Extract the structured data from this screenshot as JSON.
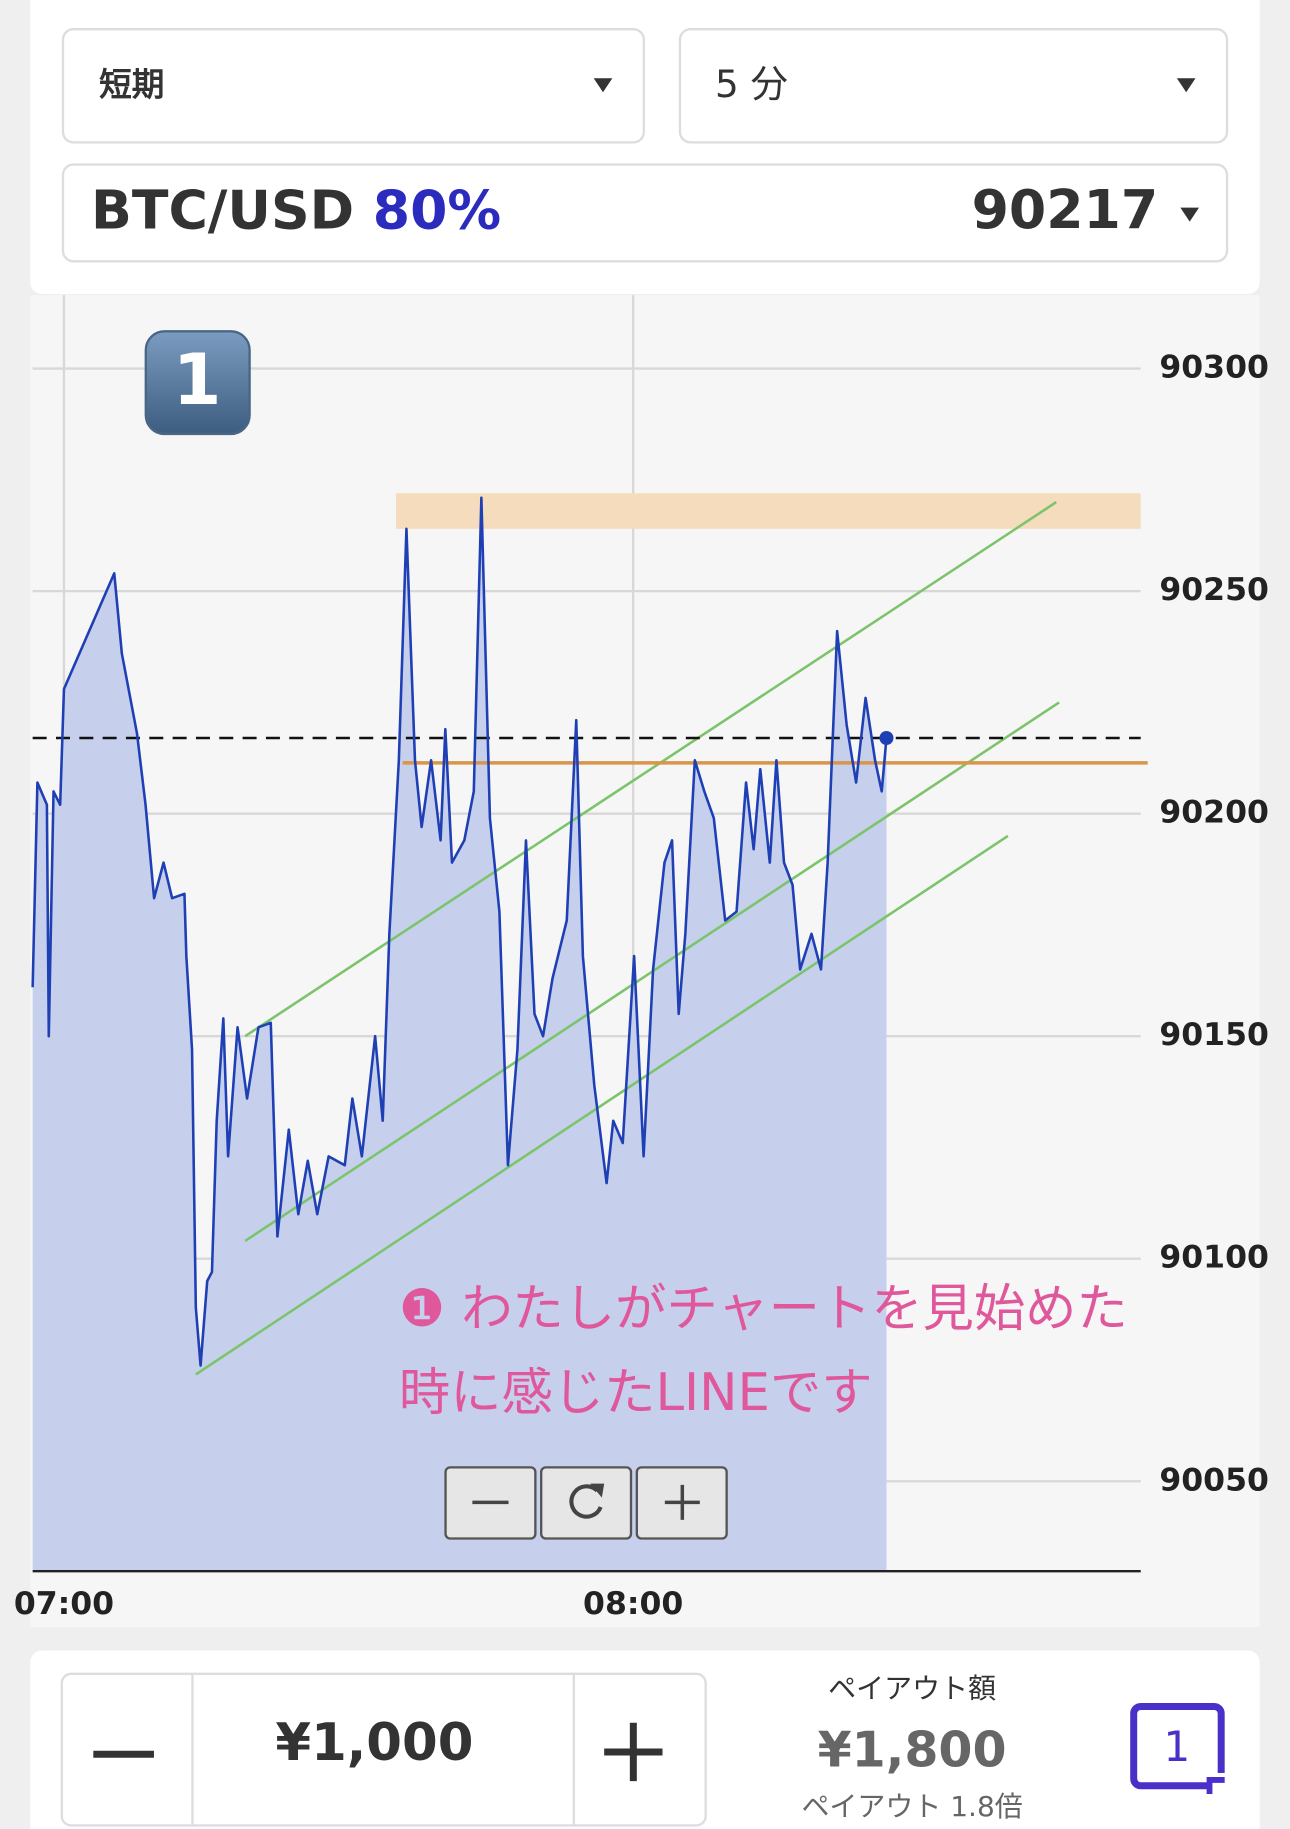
{
  "controls": {
    "term": "短期",
    "interval": "5 分",
    "pair": "BTC/USD",
    "payout_rate": "80%",
    "price": 90217
  },
  "badge": "1",
  "chart_data": {
    "type": "line",
    "x": [
      416.7,
      417.2,
      418.2,
      418.4,
      418.9,
      419.6,
      420.0,
      425.3,
      426.1,
      427.7,
      428.6,
      429.5,
      430.5,
      431.4,
      432.7,
      432.9,
      433.5,
      433.9,
      434.4,
      435.1,
      435.6,
      436.1,
      436.8,
      437.3,
      438.3,
      439.3,
      440.5,
      441.8,
      442.5,
      443.7,
      444.7,
      445.7,
      446.7,
      447.9,
      449.6,
      450.4,
      451.4,
      452.8,
      453.6,
      454.3,
      455.3,
      456.1,
      457.0,
      457.7,
      458.7,
      459.7,
      460.2,
      460.9,
      462.2,
      463.2,
      464.0,
      464.9,
      465.9,
      466.8,
      467.8,
      468.7,
      469.6,
      470.5,
      471.5,
      473.0,
      474.0,
      474.7,
      475.9,
      477.2,
      477.9,
      478.9,
      480.1,
      481.1,
      482.1,
      483.3,
      484.1,
      484.8,
      485.5,
      486.5,
      487.5,
      488.5,
      489.7,
      490.9,
      491.9,
      492.7,
      493.4,
      494.4,
      495.1,
      495.9,
      496.8,
      497.6,
      498.8,
      499.8,
      500.5,
      501.5,
      502.5,
      503.5,
      504.5,
      505.5,
      506.2,
      506.7
    ],
    "series": [
      {
        "color": "#1f3fb4",
        "values": [
          90161,
          90207,
          90202,
          90150,
          90205,
          90202,
          90228,
          90254,
          90236,
          90218,
          90202,
          90181,
          90189,
          90181,
          90182,
          90168,
          90147,
          90089,
          90076,
          90095,
          90097,
          90131,
          90154,
          90123,
          90152,
          90136,
          90152,
          90153,
          90105,
          90129,
          90110,
          90122,
          90110,
          90123,
          90121,
          90136,
          90123,
          90150,
          90131,
          90173,
          90212,
          90264,
          90212,
          90197,
          90212,
          90194,
          90219,
          90189,
          90194,
          90205,
          90271,
          90199,
          90178,
          90121,
          90147,
          90194,
          90155,
          90150,
          90163,
          90176,
          90221,
          90168,
          90139,
          90117,
          90131,
          90126,
          90168,
          90123,
          90165,
          90189,
          90194,
          90155,
          90173,
          90212,
          90205,
          90199,
          90176,
          90178,
          90207,
          90192,
          90210,
          90189,
          90212,
          90189,
          90184,
          90165,
          90173,
          90165,
          90189,
          90241,
          90220,
          90207,
          90226,
          90212,
          90205,
          90217
        ]
      }
    ],
    "xlim": [
      416.7,
      533.5
    ],
    "ylim": [
      90029.8,
      90316.5
    ],
    "xticks": [
      {
        "value": 420,
        "label": "07:00"
      },
      {
        "value": 480,
        "label": "08:00"
      }
    ],
    "yticks": [
      90050,
      90100,
      90150,
      90200,
      90250,
      90300
    ],
    "grid": true,
    "area_color": "#c6d0ec",
    "resistance_zone": {
      "range": [
        90264,
        90272
      ],
      "from_x": 455.0,
      "color": "#f5dcbd"
    },
    "support_line": {
      "value": 90211.4,
      "from_x": 455.7,
      "color": "#d9954a"
    },
    "trend_lines": {
      "color": "#7cc46a",
      "lines": [
        [
          439.1,
          90150,
          524.6,
          90270
        ],
        [
          439.1,
          90104,
          524.9,
          90225
        ],
        [
          433.9,
          90074,
          519.5,
          90195
        ]
      ]
    },
    "annotation": [
      "❶ わたしがチャートを見始めた",
      "時に感じたLINEです"
    ]
  },
  "order": {
    "amount": "¥1,000",
    "payout_label": "ペイアウト額",
    "payout": "¥1,800",
    "multiplier": "ペイアウト 1.8倍",
    "counter": "1"
  }
}
